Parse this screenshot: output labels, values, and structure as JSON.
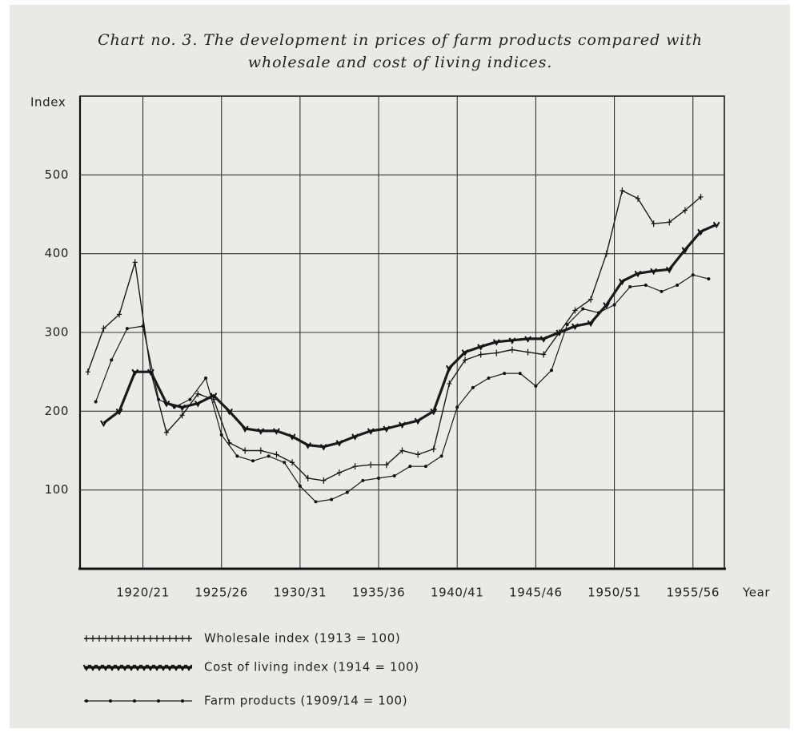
{
  "chart_data": {
    "type": "line",
    "title": "Chart no. 3. The development in prices of farm products compared with wholesale and cost of living indices.",
    "y_label": "Index",
    "x_label": "Year",
    "xlim": [
      1916,
      1957
    ],
    "xticks": [
      {
        "value": 1920,
        "label": "1920/21"
      },
      {
        "value": 1925,
        "label": "1925/26"
      },
      {
        "value": 1930,
        "label": "1930/31"
      },
      {
        "value": 1935,
        "label": "1935/36"
      },
      {
        "value": 1940,
        "label": "1940/41"
      },
      {
        "value": 1945,
        "label": "1945/46"
      },
      {
        "value": 1950,
        "label": "1950/51"
      },
      {
        "value": 1955,
        "label": "1955/56"
      }
    ],
    "ylim": [
      0,
      600
    ],
    "yticks": [
      100,
      200,
      300,
      400,
      500
    ],
    "grid": true,
    "series": [
      {
        "name": "Wholesale index (1913 = 100)",
        "color": "#1a1a1a",
        "marker": "plus",
        "x": [
          1916.5,
          1917.5,
          1918.5,
          1919.5,
          1920.5,
          1921.5,
          1922.5,
          1923.5,
          1924.5,
          1925.5,
          1926.5,
          1927.5,
          1928.5,
          1929.5,
          1930.5,
          1931.5,
          1932.5,
          1933.5,
          1934.5,
          1935.5,
          1936.5,
          1937.5,
          1938.5,
          1939.5,
          1940.5,
          1941.5,
          1942.5,
          1943.5,
          1944.5,
          1945.5,
          1946.5,
          1947.5,
          1948.5,
          1949.5,
          1950.5,
          1951.5,
          1952.5,
          1953.5,
          1954.5,
          1955.5
        ],
        "values": [
          250,
          305,
          323,
          389,
          250,
          173,
          195,
          222,
          215,
          160,
          150,
          150,
          145,
          135,
          115,
          112,
          122,
          130,
          132,
          132,
          150,
          145,
          152,
          235,
          265,
          272,
          274,
          278,
          275,
          272,
          300,
          328,
          342,
          400,
          480,
          470,
          438,
          440,
          455,
          472
        ]
      },
      {
        "name": "Cost of living index (1914 = 100)",
        "color": "#1a1a1a",
        "marker": "bold",
        "x": [
          1917.5,
          1918.5,
          1919.5,
          1920.5,
          1921.5,
          1922.5,
          1923.5,
          1924.5,
          1925.5,
          1926.5,
          1927.5,
          1928.5,
          1929.5,
          1930.5,
          1931.5,
          1932.5,
          1933.5,
          1934.5,
          1935.5,
          1936.5,
          1937.5,
          1938.5,
          1939.5,
          1940.5,
          1941.5,
          1942.5,
          1943.5,
          1944.5,
          1945.5,
          1946.5,
          1947.5,
          1948.5,
          1949.5,
          1950.5,
          1951.5,
          1952.5,
          1953.5,
          1954.5,
          1955.5,
          1956.5
        ],
        "values": [
          185,
          200,
          250,
          250,
          210,
          205,
          210,
          220,
          200,
          178,
          175,
          175,
          168,
          157,
          155,
          160,
          168,
          175,
          178,
          183,
          188,
          200,
          255,
          275,
          282,
          288,
          290,
          292,
          292,
          300,
          308,
          312,
          335,
          365,
          375,
          378,
          380,
          405,
          428,
          437
        ]
      },
      {
        "name": "Farm products (1909/14 = 100)",
        "color": "#1a1a1a",
        "marker": "dot",
        "x": [
          1917,
          1918,
          1919,
          1920,
          1921,
          1922,
          1923,
          1924,
          1925,
          1926,
          1927,
          1928,
          1929,
          1930,
          1931,
          1932,
          1933,
          1934,
          1935,
          1936,
          1937,
          1938,
          1939,
          1940,
          1941,
          1942,
          1943,
          1944,
          1945,
          1946,
          1947,
          1948,
          1949,
          1950,
          1951,
          1952,
          1953,
          1954,
          1955,
          1956
        ],
        "values": [
          212,
          265,
          305,
          308,
          215,
          205,
          215,
          242,
          170,
          143,
          137,
          143,
          135,
          105,
          85,
          88,
          97,
          112,
          115,
          118,
          130,
          130,
          143,
          205,
          230,
          242,
          248,
          248,
          232,
          252,
          310,
          330,
          325,
          335,
          358,
          360,
          352,
          360,
          373,
          368
        ]
      }
    ]
  }
}
